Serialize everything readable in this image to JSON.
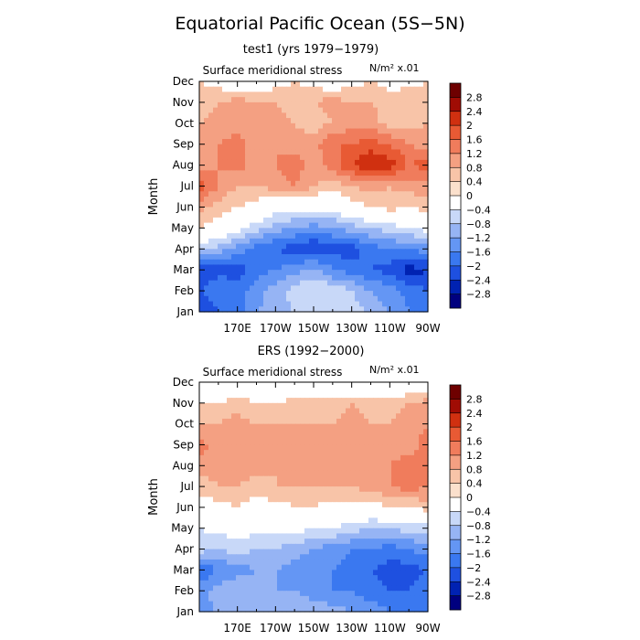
{
  "figure": {
    "title": "Equatorial Pacific Ocean (5S−5N)"
  },
  "scale": {
    "colors": [
      "#00007f",
      "#0022b2",
      "#1e50e0",
      "#3a78f0",
      "#6496f4",
      "#96b4f4",
      "#c8d8f8",
      "#ffffff",
      "#fbe0cc",
      "#f8c4a8",
      "#f4a082",
      "#f07c5c",
      "#e85a34",
      "#d03010",
      "#a00c04",
      "#6e0000"
    ],
    "levels": [
      -2.8,
      -2.4,
      -2,
      -1.6,
      -1.2,
      -0.8,
      -0.4,
      0,
      0.4,
      0.8,
      1.2,
      1.6,
      2,
      2.4,
      2.8
    ],
    "level_labels": [
      "−2.8",
      "−2.4",
      "−2",
      "−1.6",
      "−1.2",
      "−0.8",
      "−0.4",
      "0",
      "0.4",
      "0.8",
      "1.2",
      "1.6",
      "2",
      "2.4",
      "2.8"
    ]
  },
  "chart_data": [
    {
      "type": "heatmap",
      "title": "test1 (yrs 1979−1979)",
      "subtitle": "Surface meridional stress",
      "units": "N/m² x.01",
      "xlabel": "",
      "ylabel": "Month",
      "x_tick_labels": [
        "170E",
        "170W",
        "150W",
        "130W",
        "110W",
        "90W"
      ],
      "x_ticks_lon": [
        170,
        190,
        210,
        230,
        250,
        270
      ],
      "x_range_lon": [
        150,
        270
      ],
      "y_tick_labels": [
        "Jan",
        "Feb",
        "Mar",
        "Apr",
        "May",
        "Jun",
        "Jul",
        "Aug",
        "Sep",
        "Oct",
        "Nov",
        "Dec"
      ],
      "x_lon": [
        150,
        160,
        170,
        180,
        190,
        200,
        210,
        220,
        230,
        240,
        250,
        260,
        270
      ],
      "values": [
        [
          -2.4,
          -2.0,
          -1.8,
          -1.2,
          -1.0,
          -0.8,
          -0.5,
          -0.4,
          -0.6,
          -0.9,
          -1.2,
          -1.6,
          -2.0
        ],
        [
          -2.0,
          -1.6,
          -1.8,
          -1.4,
          -1.0,
          -0.6,
          -0.4,
          -0.5,
          -0.8,
          -1.2,
          -1.4,
          -1.8,
          -2.0
        ],
        [
          -2.4,
          -2.2,
          -2.2,
          -1.8,
          -1.6,
          -1.4,
          -1.0,
          -1.6,
          -1.8,
          -2.0,
          -2.2,
          -2.6,
          -2.4
        ],
        [
          -0.6,
          -1.0,
          -1.4,
          -1.8,
          -2.0,
          -2.2,
          -2.4,
          -2.2,
          -2.2,
          -1.8,
          -1.6,
          -1.6,
          -1.4
        ],
        [
          0.4,
          0.2,
          -0.2,
          -0.6,
          -1.0,
          -1.2,
          -1.4,
          -1.2,
          -1.0,
          -0.8,
          -0.6,
          -0.4,
          -0.2
        ],
        [
          1.0,
          0.6,
          0.4,
          0.2,
          -0.2,
          -0.2,
          -0.2,
          -0.2,
          0.2,
          0.4,
          0.6,
          0.4,
          0.6
        ],
        [
          1.8,
          1.2,
          0.8,
          0.8,
          1.0,
          1.2,
          0.8,
          0.6,
          0.8,
          1.0,
          0.8,
          1.0,
          1.0
        ],
        [
          1.0,
          1.2,
          1.4,
          1.0,
          1.2,
          1.4,
          1.0,
          1.4,
          2.0,
          2.4,
          2.2,
          1.6,
          1.8
        ],
        [
          1.0,
          1.2,
          1.4,
          1.0,
          1.2,
          1.0,
          1.0,
          1.6,
          1.6,
          1.8,
          1.6,
          1.2,
          1.0
        ],
        [
          0.8,
          1.0,
          1.0,
          0.8,
          1.0,
          0.8,
          0.6,
          0.8,
          1.0,
          1.0,
          0.6,
          0.6,
          0.8
        ],
        [
          0.6,
          0.8,
          1.0,
          0.8,
          0.8,
          0.6,
          0.8,
          1.0,
          0.8,
          0.8,
          0.6,
          0.8,
          0.6
        ],
        [
          0.4,
          0.2,
          -0.2,
          -0.2,
          0.2,
          0.4,
          0.2,
          0.0,
          0.2,
          0.4,
          0.2,
          0.2,
          0.4
        ]
      ]
    },
    {
      "type": "heatmap",
      "title": "ERS (1992−2000)",
      "subtitle": "Surface meridional stress",
      "units": "N/m² x.01",
      "xlabel": "",
      "ylabel": "Month",
      "x_tick_labels": [
        "170E",
        "170W",
        "150W",
        "130W",
        "110W",
        "90W"
      ],
      "x_ticks_lon": [
        170,
        190,
        210,
        230,
        250,
        270
      ],
      "x_range_lon": [
        150,
        270
      ],
      "y_tick_labels": [
        "Jan",
        "Feb",
        "Mar",
        "Apr",
        "May",
        "Jun",
        "Jul",
        "Aug",
        "Sep",
        "Oct",
        "Nov",
        "Dec"
      ],
      "x_lon": [
        150,
        160,
        170,
        180,
        190,
        200,
        210,
        220,
        230,
        240,
        250,
        260,
        270
      ],
      "values": [
        [
          -1.6,
          -1.0,
          -0.8,
          -0.8,
          -1.0,
          -0.8,
          -1.0,
          -1.0,
          -1.2,
          -1.4,
          -1.6,
          -1.8,
          -2.0
        ],
        [
          -1.4,
          -1.0,
          -0.8,
          -1.0,
          -1.2,
          -1.2,
          -1.4,
          -1.6,
          -1.6,
          -1.8,
          -2.0,
          -2.0,
          -1.8
        ],
        [
          -2.0,
          -1.6,
          -1.4,
          -1.2,
          -1.2,
          -1.4,
          -1.6,
          -1.6,
          -1.8,
          -2.0,
          -2.2,
          -2.2,
          -2.0
        ],
        [
          -0.6,
          -0.8,
          -0.6,
          -0.8,
          -0.8,
          -1.0,
          -1.2,
          -1.4,
          -1.6,
          -1.6,
          -1.8,
          -1.6,
          -1.4
        ],
        [
          -0.4,
          -0.2,
          -0.2,
          -0.2,
          -0.2,
          -0.2,
          -0.4,
          -0.4,
          -0.6,
          -0.8,
          -0.8,
          -0.6,
          -0.6
        ],
        [
          0.2,
          0.2,
          0.4,
          0.2,
          0.2,
          0.4,
          0.4,
          0.2,
          0.2,
          0.2,
          0.4,
          0.4,
          0.6
        ],
        [
          0.6,
          0.8,
          0.8,
          0.6,
          0.8,
          0.8,
          0.8,
          0.8,
          0.8,
          1.0,
          1.2,
          1.4,
          1.2
        ],
        [
          1.0,
          1.0,
          1.0,
          1.0,
          0.8,
          1.0,
          1.0,
          1.0,
          1.0,
          1.0,
          1.2,
          1.4,
          1.2
        ],
        [
          1.4,
          1.0,
          0.8,
          1.0,
          1.0,
          0.8,
          1.0,
          1.2,
          1.0,
          1.0,
          1.0,
          1.0,
          1.4
        ],
        [
          0.8,
          0.8,
          1.0,
          0.8,
          0.8,
          0.8,
          0.8,
          0.8,
          1.0,
          0.8,
          0.8,
          1.0,
          1.2
        ],
        [
          0.4,
          0.4,
          0.6,
          0.4,
          0.4,
          0.6,
          0.6,
          0.6,
          0.8,
          0.6,
          0.6,
          0.8,
          1.0
        ],
        [
          -0.4,
          -0.2,
          -0.2,
          -0.2,
          -0.4,
          -0.2,
          -0.2,
          -0.2,
          -0.4,
          -0.2,
          -0.2,
          -0.2,
          -0.2
        ]
      ]
    }
  ]
}
